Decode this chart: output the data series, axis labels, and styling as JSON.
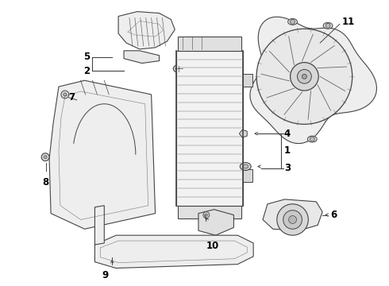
{
  "background_color": "#ffffff",
  "line_color": "#444444",
  "text_color": "#000000",
  "figsize": [
    4.9,
    3.6
  ],
  "dpi": 100
}
